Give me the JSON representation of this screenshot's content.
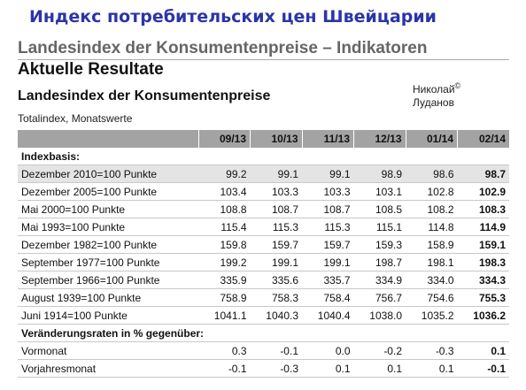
{
  "header": {
    "title": "Индекс потребительских цен Швейцарии"
  },
  "page": {
    "heading": "Landesindex der Konsumentenpreise – Indikatoren",
    "subheading": "Aktuelle Resultate",
    "table_title": "Landesindex der Konsumentenpreise",
    "table_subtitle": "Totalindex, Monatswerte"
  },
  "credit": {
    "first": "Николай",
    "mark": "©",
    "last": "Луданов"
  },
  "table": {
    "columns": [
      "09/13",
      "10/13",
      "11/13",
      "12/13",
      "01/14",
      "02/14"
    ],
    "sections": [
      {
        "title": "Indexbasis:",
        "rows": [
          {
            "label": "Dezember 2010=100 Punkte",
            "values": [
              "99.2",
              "99.1",
              "99.1",
              "98.9",
              "98.6",
              "98.7"
            ]
          },
          {
            "label": "Dezember 2005=100 Punkte",
            "values": [
              "103.4",
              "103.3",
              "103.3",
              "103.1",
              "102.8",
              "102.9"
            ]
          },
          {
            "label": "Mai 2000=100 Punkte",
            "values": [
              "108.8",
              "108.7",
              "108.7",
              "108.5",
              "108.2",
              "108.3"
            ]
          },
          {
            "label": "Mai 1993=100 Punkte",
            "values": [
              "115.4",
              "115.3",
              "115.3",
              "115.1",
              "114.8",
              "114.9"
            ]
          },
          {
            "label": "Dezember 1982=100 Punkte",
            "values": [
              "159.8",
              "159.7",
              "159.7",
              "159.3",
              "158.9",
              "159.1"
            ]
          },
          {
            "label": "September 1977=100 Punkte",
            "values": [
              "199.2",
              "199.1",
              "199.1",
              "198.7",
              "198.1",
              "198.3"
            ]
          },
          {
            "label": "September 1966=100 Punkte",
            "values": [
              "335.9",
              "335.6",
              "335.7",
              "334.9",
              "334.0",
              "334.3"
            ]
          },
          {
            "label": "August 1939=100 Punkte",
            "values": [
              "758.9",
              "758.3",
              "758.4",
              "756.7",
              "754.6",
              "755.3"
            ]
          },
          {
            "label": "Juni 1914=100 Punkte",
            "values": [
              "1041.1",
              "1040.3",
              "1040.4",
              "1038.0",
              "1035.2",
              "1036.2"
            ]
          }
        ]
      },
      {
        "title": "Veränderungsraten in % gegenüber:",
        "rows": [
          {
            "label": "Vormonat",
            "values": [
              "0.3",
              "-0.1",
              "0.0",
              "-0.2",
              "-0.3",
              "0.1"
            ]
          },
          {
            "label": "Vorjahresmonat",
            "values": [
              "-0.1",
              "-0.3",
              "0.1",
              "0.1",
              "0.1",
              "-0.1"
            ]
          }
        ]
      }
    ]
  }
}
